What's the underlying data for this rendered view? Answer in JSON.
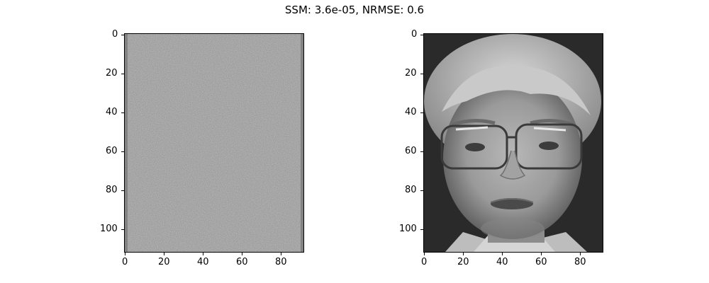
{
  "title": "SSM: 3.6e-05, NRMSE: 0.6",
  "panels": [
    {
      "id": "left",
      "kind": "image",
      "content": "residual noise map (mostly mid-gray)",
      "x_ticks": [
        "0",
        "20",
        "40",
        "60",
        "80"
      ],
      "y_ticks": [
        "0",
        "20",
        "40",
        "60",
        "80",
        "100"
      ],
      "x_range": [
        0,
        92
      ],
      "y_range": [
        0,
        112
      ]
    },
    {
      "id": "right",
      "kind": "image",
      "content": "grayscale face photo (man with glasses)",
      "x_ticks": [
        "0",
        "20",
        "40",
        "60",
        "80"
      ],
      "y_ticks": [
        "0",
        "20",
        "40",
        "60",
        "80",
        "100"
      ],
      "x_range": [
        0,
        92
      ],
      "y_range": [
        0,
        112
      ]
    }
  ],
  "colors": {
    "axis": "#000000",
    "noise_bg": "#8f8f8f",
    "face_bg": "#2a2a2a"
  }
}
